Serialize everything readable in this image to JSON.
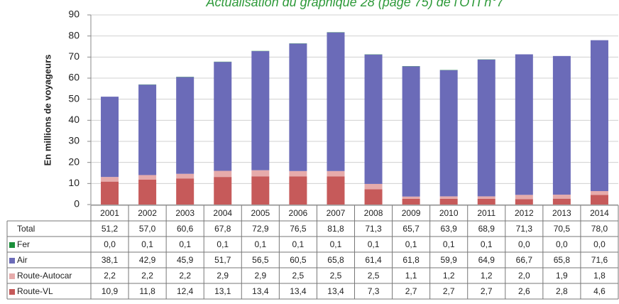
{
  "chart_data": {
    "type": "bar",
    "stacked": true,
    "title": "Actualisation du graphique 28 (page 75) de l'OTI n°7",
    "y_label": "En millions de voyageurs",
    "categories": [
      "2001",
      "2002",
      "2003",
      "2004",
      "2005",
      "2006",
      "2007",
      "2008",
      "2009",
      "2010",
      "2011",
      "2012",
      "2013",
      "2014"
    ],
    "ylim": [
      0,
      90
    ],
    "yticks": [
      0,
      10,
      20,
      30,
      40,
      50,
      60,
      70,
      80,
      90
    ],
    "grid": true,
    "total": {
      "name": "Total",
      "values": [
        51.2,
        57.0,
        60.6,
        67.8,
        72.9,
        76.5,
        81.8,
        71.3,
        65.7,
        63.9,
        68.9,
        71.3,
        70.5,
        78.0
      ],
      "value_labels": [
        "51,2",
        "57,0",
        "60,6",
        "67,8",
        "72,9",
        "76,5",
        "81,8",
        "71,3",
        "65,7",
        "63,9",
        "68,9",
        "71,3",
        "70,5",
        "78,0"
      ]
    },
    "series": [
      {
        "name": "Fer",
        "color": "#1a8f3a",
        "values": [
          0.0,
          0.1,
          0.1,
          0.1,
          0.1,
          0.1,
          0.1,
          0.1,
          0.1,
          0.1,
          0.1,
          0.0,
          0.0,
          0.0
        ],
        "value_labels": [
          "0,0",
          "0,1",
          "0,1",
          "0,1",
          "0,1",
          "0,1",
          "0,1",
          "0,1",
          "0,1",
          "0,1",
          "0,1",
          "0,0",
          "0,0",
          "0,0"
        ]
      },
      {
        "name": "Air",
        "color": "#6b6bb8",
        "values": [
          38.1,
          42.9,
          45.9,
          51.7,
          56.5,
          60.5,
          65.8,
          61.4,
          61.8,
          59.9,
          64.9,
          66.7,
          65.8,
          71.6
        ],
        "value_labels": [
          "38,1",
          "42,9",
          "45,9",
          "51,7",
          "56,5",
          "60,5",
          "65,8",
          "61,4",
          "61,8",
          "59,9",
          "64,9",
          "66,7",
          "65,8",
          "71,6"
        ]
      },
      {
        "name": "Route-Autocar",
        "color": "#e6abab",
        "values": [
          2.2,
          2.2,
          2.2,
          2.9,
          2.9,
          2.5,
          2.5,
          2.5,
          1.1,
          1.2,
          1.2,
          2.0,
          1.9,
          1.8
        ],
        "value_labels": [
          "2,2",
          "2,2",
          "2,2",
          "2,9",
          "2,9",
          "2,5",
          "2,5",
          "2,5",
          "1,1",
          "1,2",
          "1,2",
          "2,0",
          "1,9",
          "1,8"
        ]
      },
      {
        "name": "Route-VL",
        "color": "#c65a5a",
        "values": [
          10.9,
          11.8,
          12.4,
          13.1,
          13.4,
          13.4,
          13.4,
          7.3,
          2.7,
          2.7,
          2.7,
          2.6,
          2.8,
          4.6
        ],
        "value_labels": [
          "10,9",
          "11,8",
          "12,4",
          "13,1",
          "13,4",
          "13,4",
          "13,4",
          "7,3",
          "2,7",
          "2,7",
          "2,7",
          "2,6",
          "2,8",
          "4,6"
        ]
      }
    ]
  }
}
